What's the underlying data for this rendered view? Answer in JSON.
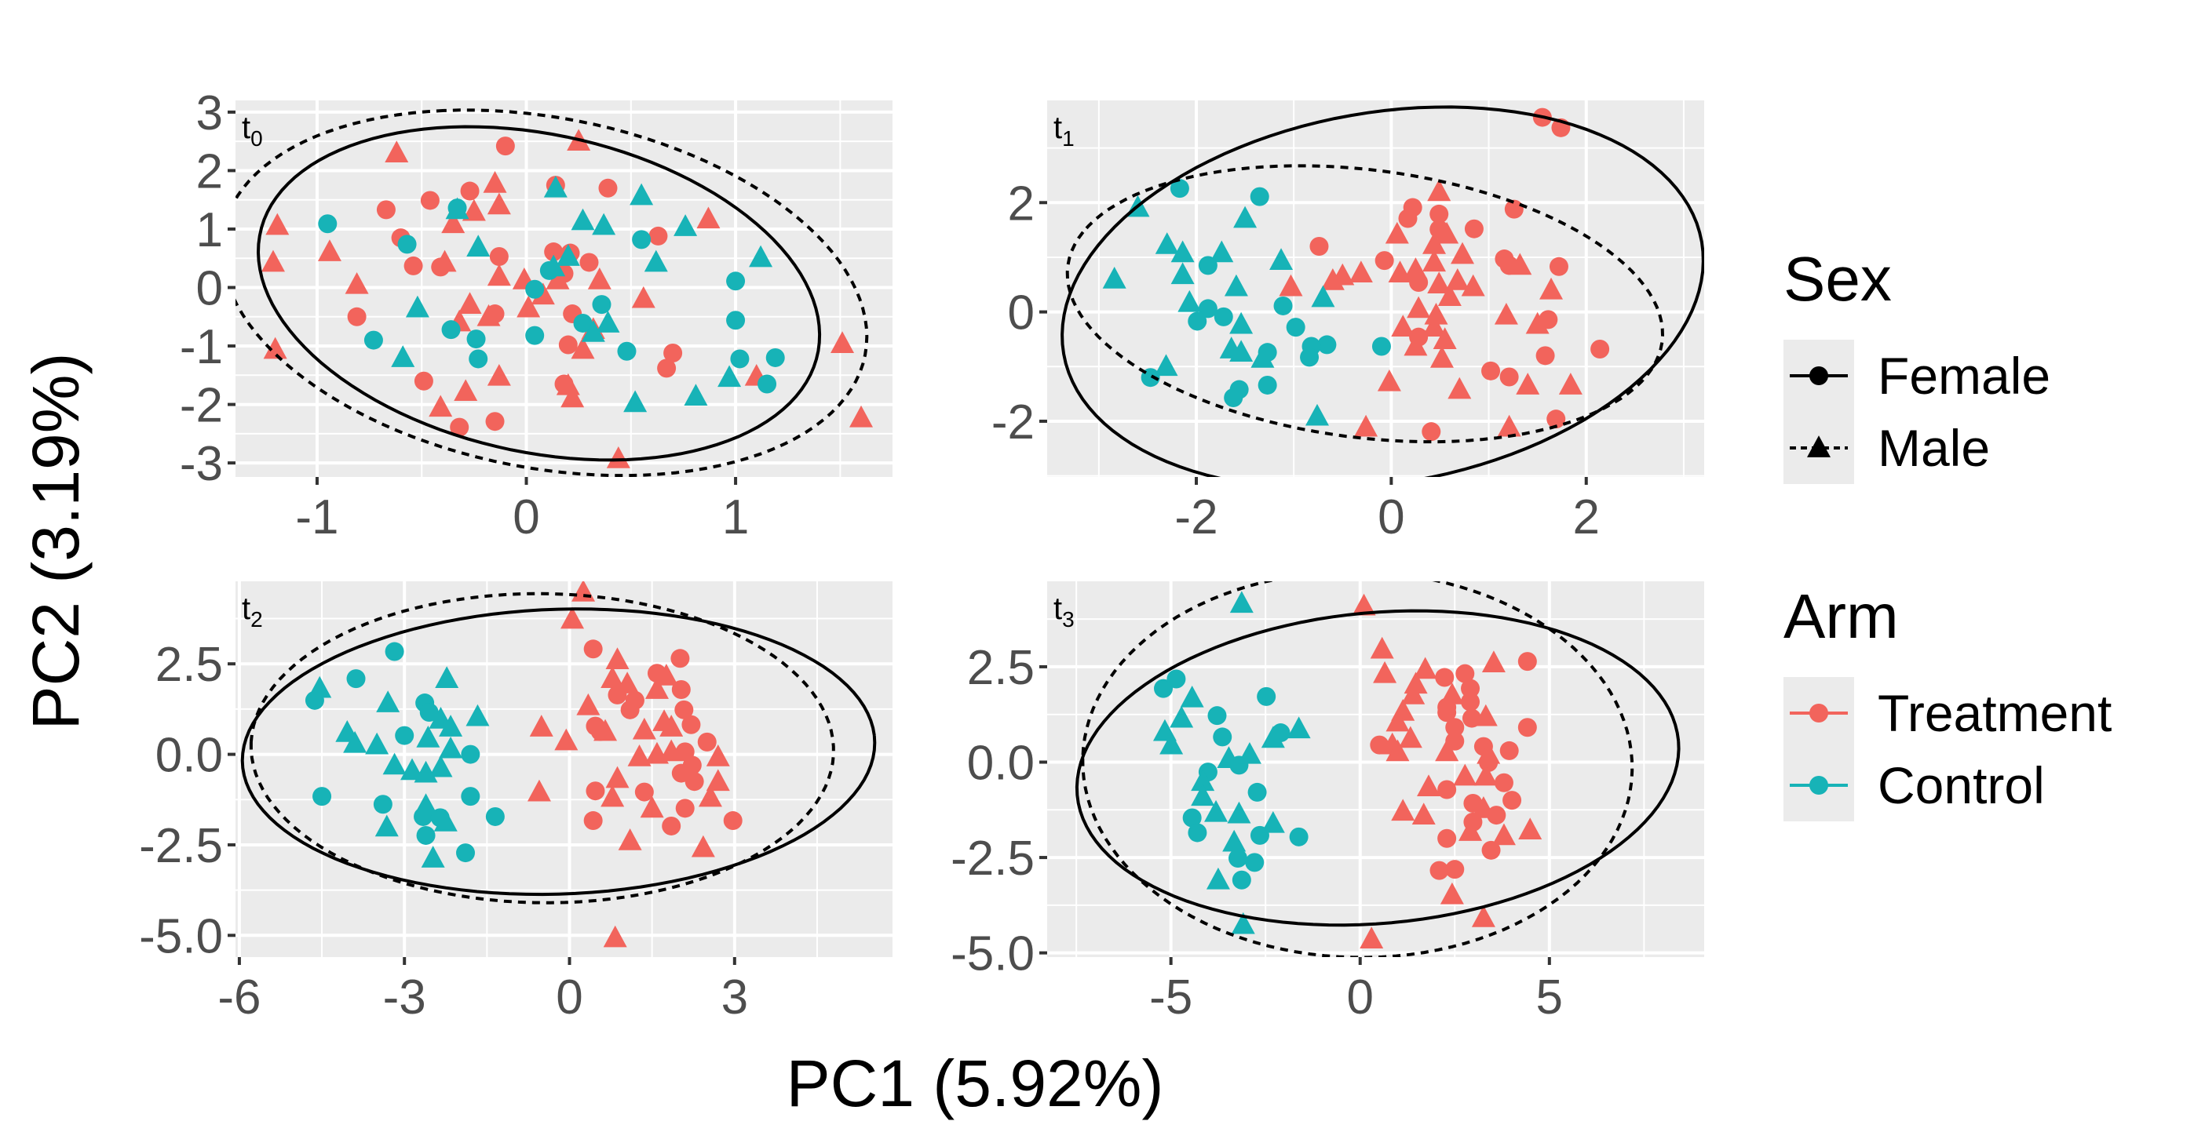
{
  "figure": {
    "xlabel": "PC1 (5.92%)",
    "ylabel": "PC2 (3.19%)",
    "legend_position": "right",
    "legends": [
      {
        "title": "Sex",
        "items": [
          {
            "label": "Female",
            "shape": "circle",
            "line": "solid"
          },
          {
            "label": "Male",
            "shape": "triangle",
            "line": "dashed"
          }
        ]
      },
      {
        "title": "Arm",
        "items": [
          {
            "label": "Treatment",
            "color": "#F2645C"
          },
          {
            "label": "Control",
            "color": "#17B3B7"
          }
        ]
      }
    ],
    "colors": {
      "Treatment": "#F2645C",
      "Control": "#17B3B7",
      "panel_bg": "#EBEBEB",
      "grid": "#FFFFFF"
    },
    "ellipse_by": "Sex",
    "ellipse_level": 0.95
  },
  "chart_data": [
    {
      "type": "scatter",
      "panel_label": "t",
      "panel_subscript": "0",
      "xlim": [
        -1.39,
        1.75
      ],
      "ylim": [
        -3.24,
        3.2
      ],
      "xticks": [
        {
          "v": -1,
          "label": "-1"
        },
        {
          "v": 0,
          "label": "0"
        },
        {
          "v": 1,
          "label": "1"
        }
      ],
      "yticks": [
        {
          "v": 3,
          "label": "3"
        },
        {
          "v": 2,
          "label": "2"
        },
        {
          "v": 1,
          "label": "1"
        },
        {
          "v": 0,
          "label": "0"
        },
        {
          "v": -1,
          "label": "-1"
        },
        {
          "v": -2,
          "label": "-2"
        },
        {
          "v": -3,
          "label": "-3"
        }
      ],
      "grid": true,
      "series": [
        {
          "arm": "Treatment",
          "sex": "Female",
          "x": [
            -0.1,
            0.14,
            0.39,
            -0.27,
            -0.46,
            -0.67,
            -0.6,
            0.63,
            -0.13,
            0.13,
            0.21,
            0.3,
            -0.54,
            -0.41,
            0.18,
            -0.15,
            0.22,
            -0.81,
            0.2,
            0.7,
            0.67,
            -0.49,
            0.18,
            -0.15,
            -0.32
          ],
          "y": [
            2.42,
            1.75,
            1.7,
            1.65,
            1.49,
            1.33,
            0.85,
            0.88,
            0.53,
            0.61,
            0.59,
            0.43,
            0.37,
            0.35,
            0.24,
            -0.45,
            -0.45,
            -0.5,
            -0.98,
            -1.12,
            -1.38,
            -1.6,
            -1.65,
            -2.29,
            -2.39
          ]
        },
        {
          "arm": "Treatment",
          "sex": "Male",
          "x": [
            0.25,
            -0.62,
            -0.15,
            -0.13,
            -0.25,
            -0.35,
            -1.19,
            0.87,
            -0.94,
            -1.21,
            -0.39,
            -0.13,
            -0.01,
            0.15,
            0.35,
            -0.81,
            0.08,
            0.56,
            -0.27,
            0.01,
            -0.18,
            -0.32,
            0.32,
            0.27,
            -1.2,
            -0.13,
            0.2,
            1.1,
            -0.29,
            0.22,
            -0.41,
            1.51,
            1.6,
            0.44
          ],
          "y": [
            2.5,
            2.3,
            1.78,
            1.41,
            1.3,
            1.09,
            1.06,
            1.17,
            0.61,
            0.43,
            0.43,
            0.19,
            0.13,
            0.13,
            0.13,
            0.05,
            -0.13,
            -0.19,
            -0.29,
            -0.35,
            -0.5,
            -0.59,
            -0.72,
            -1.06,
            -1.06,
            -1.52,
            -1.68,
            -1.52,
            -1.78,
            -1.89,
            -2.05,
            -0.96,
            -2.23,
            -2.93
          ]
        },
        {
          "arm": "Control",
          "sex": "Female",
          "x": [
            -0.95,
            -0.33,
            -0.57,
            0.55,
            0.11,
            0.04,
            0.36,
            1.0,
            1.0,
            -0.36,
            -0.24,
            0.04,
            0.27,
            -0.73,
            0.48,
            -0.23,
            1.02,
            1.19,
            1.15
          ],
          "y": [
            1.09,
            1.36,
            0.74,
            0.82,
            0.29,
            -0.03,
            -0.29,
            0.11,
            -0.56,
            -0.72,
            -0.88,
            -0.82,
            -0.61,
            -0.9,
            -1.09,
            -1.22,
            -1.22,
            -1.2,
            -1.65
          ]
        },
        {
          "arm": "Control",
          "sex": "Male",
          "x": [
            0.14,
            0.55,
            -0.33,
            0.27,
            0.37,
            0.76,
            -0.23,
            0.2,
            1.12,
            0.62,
            0.13,
            -0.52,
            0.39,
            0.32,
            -0.59,
            0.97,
            0.52,
            0.81
          ],
          "y": [
            1.7,
            1.57,
            1.33,
            1.14,
            1.06,
            1.04,
            0.69,
            0.53,
            0.51,
            0.43,
            0.35,
            -0.35,
            -0.61,
            -0.77,
            -1.2,
            -1.54,
            -1.97,
            -1.86
          ]
        }
      ]
    },
    {
      "type": "scatter",
      "panel_label": "t",
      "panel_subscript": "1",
      "xlim": [
        -3.53,
        3.21
      ],
      "ylim": [
        -3.02,
        3.87
      ],
      "xticks": [
        {
          "v": -2,
          "label": "-2"
        },
        {
          "v": 0,
          "label": "0"
        },
        {
          "v": 2,
          "label": "2"
        }
      ],
      "yticks": [
        {
          "v": 2,
          "label": "2"
        },
        {
          "v": 0,
          "label": "0"
        },
        {
          "v": -2,
          "label": "-2"
        }
      ],
      "grid": true,
      "series": [
        {
          "arm": "Treatment",
          "sex": "Female",
          "x": [
            1.55,
            1.74,
            0.22,
            0.17,
            0.49,
            1.26,
            0.85,
            0.49,
            -0.74,
            -0.07,
            1.16,
            1.21,
            1.72,
            0.28,
            1.61,
            0.28,
            2.14,
            1.58,
            1.02,
            1.21,
            1.69,
            0.41
          ],
          "y": [
            3.56,
            3.37,
            1.91,
            1.71,
            1.79,
            1.88,
            1.52,
            1.51,
            1.2,
            0.94,
            0.97,
            0.85,
            0.83,
            0.54,
            -0.14,
            -0.46,
            -0.68,
            -0.8,
            -1.08,
            -1.19,
            -1.96,
            -2.19
          ]
        },
        {
          "arm": "Treatment",
          "sex": "Male",
          "x": [
            0.49,
            0.06,
            0.57,
            0.44,
            0.73,
            1.32,
            0.09,
            0.25,
            -0.31,
            -0.5,
            -0.6,
            -1.03,
            0.44,
            0.49,
            0.68,
            0.84,
            1.64,
            0.6,
            0.28,
            0.46,
            1.18,
            1.5,
            0.12,
            0.44,
            0.55,
            0.25,
            0.52,
            -0.02,
            0.7,
            1.4,
            1.84,
            -0.26,
            1.21
          ],
          "y": [
            2.2,
            1.42,
            1.42,
            1.23,
            1.05,
            0.85,
            0.71,
            0.77,
            0.71,
            0.66,
            0.57,
            0.46,
            0.91,
            0.51,
            0.57,
            0.46,
            0.4,
            0.28,
            0.06,
            -0.06,
            -0.06,
            -0.23,
            -0.28,
            -0.28,
            -0.51,
            -0.63,
            -0.85,
            -1.28,
            -1.42,
            -1.34,
            -1.34,
            -2.11,
            -2.11
          ]
        },
        {
          "arm": "Control",
          "sex": "Female",
          "x": [
            -2.17,
            -1.35,
            -1.88,
            -1.11,
            -1.88,
            -1.72,
            -1.99,
            -0.98,
            -0.66,
            -0.82,
            -1.27,
            -0.84,
            -0.1,
            -2.47,
            -1.27,
            -1.56,
            -1.62
          ],
          "y": [
            2.26,
            2.11,
            0.85,
            0.11,
            0.06,
            -0.09,
            -0.17,
            -0.28,
            -0.6,
            -0.63,
            -0.74,
            -0.83,
            -0.63,
            -1.2,
            -1.34,
            -1.42,
            -1.57
          ]
        },
        {
          "arm": "Control",
          "sex": "Male",
          "x": [
            -2.6,
            -1.5,
            -2.3,
            -2.14,
            -1.74,
            -1.13,
            -2.14,
            -2.84,
            -1.59,
            -2.07,
            -0.7,
            -1.54,
            -1.64,
            -1.54,
            -1.32,
            -2.31,
            -0.76
          ],
          "y": [
            1.91,
            1.71,
            1.23,
            1.08,
            1.08,
            0.94,
            0.68,
            0.6,
            0.46,
            0.17,
            0.26,
            -0.23,
            -0.68,
            -0.74,
            -0.85,
            -1.0,
            -1.91
          ]
        }
      ]
    },
    {
      "type": "scatter",
      "panel_label": "t",
      "panel_subscript": "2",
      "xlim": [
        -6.07,
        5.87
      ],
      "ylim": [
        -5.6,
        4.78
      ],
      "xticks": [
        {
          "v": -6,
          "label": "-6"
        },
        {
          "v": -3,
          "label": "-3"
        },
        {
          "v": 0,
          "label": "0"
        },
        {
          "v": 3,
          "label": "3"
        }
      ],
      "yticks": [
        {
          "v": 2.5,
          "label": "2.5"
        },
        {
          "v": 0,
          "label": "0.0"
        },
        {
          "v": -2.5,
          "label": "-2.5"
        },
        {
          "v": -5,
          "label": "-5.0"
        }
      ],
      "grid": true,
      "series": [
        {
          "arm": "Treatment",
          "sex": "Female",
          "x": [
            0.43,
            2.01,
            2.03,
            1.59,
            0.87,
            1.19,
            1.1,
            2.08,
            2.21,
            0.47,
            0.56,
            2.5,
            2.1,
            2.23,
            2.27,
            0.47,
            1.36,
            2.1,
            0.43,
            1.85,
            2.97,
            2.03
          ],
          "y": [
            2.91,
            2.65,
            1.79,
            2.24,
            1.64,
            1.49,
            1.23,
            1.23,
            0.82,
            0.78,
            0.63,
            0.34,
            0.07,
            -0.3,
            -0.75,
            -1.01,
            -1.04,
            -1.49,
            -1.83,
            -1.98,
            -1.83,
            -0.52
          ]
        },
        {
          "arm": "Treatment",
          "sex": "Male",
          "x": [
            0.25,
            0.05,
            0.87,
            0.78,
            1.76,
            1.05,
            1.59,
            0.34,
            -0.51,
            -0.06,
            0.65,
            1.36,
            1.72,
            1.85,
            1.27,
            1.59,
            1.85,
            2.7,
            0.87,
            2.7,
            -0.55,
            0.78,
            1.5,
            2.56,
            1.1,
            2.43,
            0.83
          ],
          "y": [
            4.48,
            3.73,
            2.61,
            2.09,
            2.16,
            1.94,
            1.79,
            1.34,
            0.75,
            0.37,
            0.63,
            0.67,
            0.9,
            0.75,
            -0.07,
            0.0,
            0.07,
            -0.07,
            -0.67,
            -0.75,
            -1.04,
            -1.19,
            -1.49,
            -1.19,
            -2.39,
            -2.58,
            -5.07
          ]
        },
        {
          "arm": "Control",
          "sex": "Female",
          "x": [
            -3.18,
            -4.63,
            -3.88,
            -2.63,
            -2.55,
            -3.0,
            -1.8,
            -4.5,
            -3.39,
            -1.8,
            -2.66,
            -2.35,
            -1.35,
            -2.61,
            -1.89
          ],
          "y": [
            2.84,
            1.49,
            2.09,
            1.42,
            1.16,
            0.52,
            0.0,
            -1.16,
            -1.38,
            -1.16,
            -1.72,
            -1.75,
            -1.72,
            -2.24,
            -2.72
          ]
        },
        {
          "arm": "Control",
          "sex": "Male",
          "x": [
            -4.54,
            -2.23,
            -3.3,
            -1.67,
            -2.34,
            -2.16,
            -4.04,
            -3.9,
            -3.5,
            -2.57,
            -2.16,
            -3.18,
            -2.86,
            -2.61,
            -2.34,
            -2.61,
            -2.25,
            -3.32,
            -2.48
          ],
          "y": [
            1.82,
            2.09,
            1.42,
            1.04,
            0.97,
            0.75,
            0.6,
            0.3,
            0.26,
            0.45,
            0.15,
            -0.3,
            -0.45,
            -0.52,
            -0.37,
            -1.42,
            -1.87,
            -2.01,
            -2.87
          ]
        }
      ]
    },
    {
      "type": "scatter",
      "panel_label": "t",
      "panel_subscript": "3",
      "xlim": [
        -8.27,
        9.09
      ],
      "ylim": [
        -5.11,
        4.74
      ],
      "xticks": [
        {
          "v": -5,
          "label": "-5"
        },
        {
          "v": 0,
          "label": "0"
        },
        {
          "v": 5,
          "label": "5"
        }
      ],
      "yticks": [
        {
          "v": 2.5,
          "label": "2.5"
        },
        {
          "v": 0,
          "label": "0.0"
        },
        {
          "v": -2.5,
          "label": "-2.5"
        },
        {
          "v": -5,
          "label": "-5.0"
        }
      ],
      "grid": true,
      "series": [
        {
          "arm": "Treatment",
          "sex": "Female",
          "x": [
            4.42,
            2.23,
            2.77,
            2.91,
            2.91,
            2.29,
            2.29,
            2.95,
            4.42,
            2.5,
            0.51,
            2.5,
            3.26,
            3.94,
            3.39,
            3.8,
            2.29,
            4.01,
            2.98,
            3.6,
            2.98,
            2.29,
            3.46,
            2.09,
            2.5
          ],
          "y": [
            2.64,
            2.22,
            2.32,
            1.93,
            1.58,
            1.44,
            1.3,
            1.15,
            0.91,
            0.91,
            0.45,
            0.55,
            0.41,
            0.3,
            -0.01,
            -0.54,
            -0.72,
            -1.0,
            -1.08,
            -1.39,
            -1.57,
            -2.0,
            -2.31,
            -2.84,
            -2.81
          ]
        },
        {
          "arm": "Treatment",
          "sex": "Male",
          "x": [
            0.1,
            0.58,
            0.65,
            1.72,
            1.47,
            3.53,
            1.4,
            2.43,
            3.32,
            1.13,
            0.99,
            1.33,
            0.85,
            0.99,
            2.29,
            3.39,
            2.77,
            3.32,
            1.81,
            1.13,
            1.68,
            3.26,
            2.91,
            3.8,
            4.49,
            2.43,
            3.26,
            0.3
          ],
          "y": [
            4.09,
            2.96,
            2.32,
            2.43,
            2.04,
            2.6,
            1.76,
            1.76,
            1.19,
            1.33,
            1.05,
            0.62,
            0.45,
            0.27,
            0.27,
            0.2,
            -0.37,
            -0.37,
            -0.65,
            -1.29,
            -1.39,
            -1.22,
            -1.82,
            -1.93,
            -1.78,
            -3.48,
            -4.08,
            -4.64
          ]
        },
        {
          "arm": "Control",
          "sex": "Female",
          "x": [
            -5.2,
            -4.86,
            -2.48,
            -3.78,
            -3.64,
            -4.02,
            -3.2,
            -2.72,
            -4.44,
            -4.3,
            -2.65,
            -1.62,
            -3.23,
            -2.79,
            -3.13,
            -2.1
          ],
          "y": [
            1.93,
            2.18,
            1.72,
            1.22,
            0.66,
            -0.26,
            -0.08,
            -0.79,
            -1.46,
            -1.85,
            -1.92,
            -1.96,
            -2.52,
            -2.63,
            -3.09,
            0.77
          ]
        },
        {
          "arm": "Control",
          "sex": "Male",
          "x": [
            -3.13,
            -4.44,
            -4.72,
            -5.16,
            -4.99,
            -1.62,
            -2.3,
            -3.47,
            -2.92,
            -4.16,
            -4.16,
            -3.81,
            -3.2,
            -2.3,
            -3.33,
            -3.75,
            -3.09
          ],
          "y": [
            4.16,
            1.68,
            1.15,
            0.8,
            0.45,
            0.87,
            0.62,
            0.09,
            0.2,
            -0.51,
            -0.9,
            -1.32,
            -1.36,
            -1.61,
            -2.1,
            -3.09,
            -4.26
          ]
        }
      ]
    }
  ]
}
